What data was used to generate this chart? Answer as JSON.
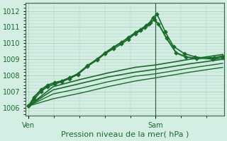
{
  "bg_color": "#d4eee4",
  "grid_color": "#b0d4c4",
  "line_color": "#1a6b2a",
  "marker_color": "#1a6b2a",
  "xlabel": "Pression niveau de la mer( hPa )",
  "xtick_labels": [
    "Ven",
    "Sam"
  ],
  "ylim": [
    1005.5,
    1012.5
  ],
  "yticks": [
    1006,
    1007,
    1008,
    1009,
    1010,
    1011,
    1012
  ],
  "xlim": [
    0.0,
    1.45
  ],
  "vline_x": 0.95,
  "xtick_positions": [
    0.02,
    0.95
  ],
  "series": [
    {
      "x": [
        0.02,
        0.06,
        0.11,
        0.16,
        0.21,
        0.26,
        0.32,
        0.38,
        0.45,
        0.52,
        0.58,
        0.64,
        0.7,
        0.75,
        0.8,
        0.84,
        0.88,
        0.91,
        0.94,
        0.97,
        1.03,
        1.1,
        1.17,
        1.25,
        1.38,
        1.44
      ],
      "y": [
        1006.1,
        1006.65,
        1007.1,
        1007.4,
        1007.55,
        1007.65,
        1007.85,
        1008.1,
        1008.6,
        1009.0,
        1009.4,
        1009.75,
        1010.05,
        1010.35,
        1010.65,
        1010.85,
        1011.1,
        1011.3,
        1011.45,
        1011.2,
        1010.3,
        1009.4,
        1009.15,
        1009.05,
        1009.1,
        1009.2
      ],
      "lw": 1.5,
      "marker": "D",
      "ms": 2.8
    },
    {
      "x": [
        0.02,
        0.06,
        0.11,
        0.16,
        0.21,
        0.26,
        0.32,
        0.38,
        0.45,
        0.52,
        0.58,
        0.64,
        0.7,
        0.75,
        0.8,
        0.84,
        0.87,
        0.9,
        0.93,
        0.96,
        1.02,
        1.08,
        1.16,
        1.24,
        1.37,
        1.44
      ],
      "y": [
        1006.1,
        1006.5,
        1007.0,
        1007.3,
        1007.45,
        1007.6,
        1007.8,
        1008.05,
        1008.55,
        1008.95,
        1009.35,
        1009.65,
        1009.95,
        1010.25,
        1010.58,
        1010.78,
        1010.98,
        1011.2,
        1011.6,
        1011.8,
        1010.7,
        1009.8,
        1009.35,
        1009.15,
        1009.0,
        1009.1
      ],
      "lw": 1.2,
      "marker": "D",
      "ms": 2.8
    },
    {
      "x": [
        0.02,
        0.2,
        0.4,
        0.6,
        0.8,
        0.95,
        1.2,
        1.44
      ],
      "y": [
        1006.1,
        1007.3,
        1007.75,
        1008.15,
        1008.5,
        1008.65,
        1009.0,
        1009.3
      ],
      "lw": 1.2,
      "marker": null,
      "ms": 0
    },
    {
      "x": [
        0.02,
        0.2,
        0.4,
        0.6,
        0.8,
        0.95,
        1.2,
        1.44
      ],
      "y": [
        1006.1,
        1007.1,
        1007.5,
        1007.9,
        1008.2,
        1008.38,
        1008.72,
        1009.0
      ],
      "lw": 1.2,
      "marker": null,
      "ms": 0
    },
    {
      "x": [
        0.02,
        0.2,
        0.4,
        0.6,
        0.8,
        0.95,
        1.2,
        1.44
      ],
      "y": [
        1006.1,
        1006.85,
        1007.2,
        1007.6,
        1007.95,
        1008.1,
        1008.45,
        1008.75
      ],
      "lw": 1.0,
      "marker": null,
      "ms": 0
    },
    {
      "x": [
        0.02,
        0.2,
        0.4,
        0.6,
        0.8,
        0.95,
        1.2,
        1.44
      ],
      "y": [
        1006.1,
        1006.55,
        1006.9,
        1007.3,
        1007.65,
        1007.85,
        1008.2,
        1008.5
      ],
      "lw": 1.0,
      "marker": null,
      "ms": 0
    }
  ]
}
